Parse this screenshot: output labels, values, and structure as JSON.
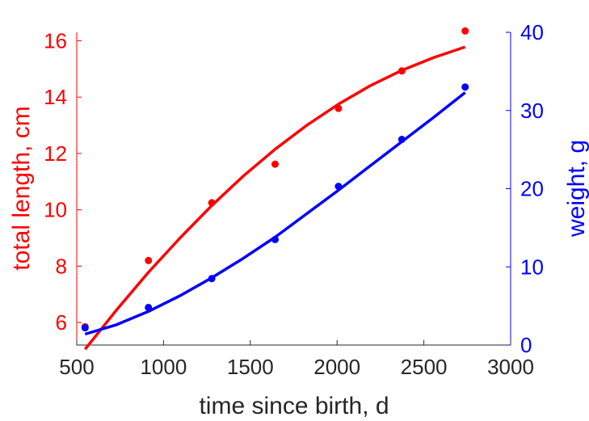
{
  "chart_data": {
    "type": "scatter",
    "title": "",
    "xlabel": "time since birth, d",
    "xlim": [
      500,
      3000
    ],
    "x_ticks": [
      500,
      1000,
      1500,
      2000,
      2500,
      3000
    ],
    "colors": {
      "length": "#ff0000",
      "weight": "#0000ff",
      "text": "#262626"
    },
    "left_axis": {
      "label": "total length, cm",
      "ylim": [
        5.2,
        16.3
      ],
      "ticks": [
        6,
        8,
        10,
        12,
        14,
        16
      ]
    },
    "right_axis": {
      "label": "weight, g",
      "ylim": [
        0,
        40
      ],
      "ticks": [
        0,
        10,
        20,
        30,
        40
      ]
    },
    "series": [
      {
        "axis": "left",
        "x": [
          548,
          913,
          1278,
          1643,
          2008,
          2373,
          2738
        ],
        "y": [
          5.85,
          8.2,
          10.25,
          11.62,
          13.6,
          14.93,
          16.35
        ],
        "fit_x": [
          548,
          730,
          913,
          1095,
          1278,
          1460,
          1643,
          1825,
          2008,
          2190,
          2373,
          2555,
          2738
        ],
        "fit_y": [
          5.05,
          6.45,
          7.78,
          9.0,
          10.15,
          11.2,
          12.15,
          13.0,
          13.75,
          14.4,
          14.95,
          15.4,
          15.78
        ]
      },
      {
        "axis": "right",
        "x": [
          548,
          913,
          1278,
          1643,
          2008,
          2373,
          2738
        ],
        "y": [
          2.2,
          4.8,
          8.5,
          13.5,
          20.3,
          26.3,
          33.0
        ],
        "fit_x": [
          548,
          730,
          913,
          1095,
          1278,
          1460,
          1643,
          1825,
          2008,
          2190,
          2373,
          2555,
          2738
        ],
        "fit_y": [
          1.4,
          2.6,
          4.3,
          6.3,
          8.6,
          11.1,
          13.8,
          16.8,
          19.8,
          22.9,
          26.0,
          29.1,
          32.3
        ]
      }
    ]
  }
}
